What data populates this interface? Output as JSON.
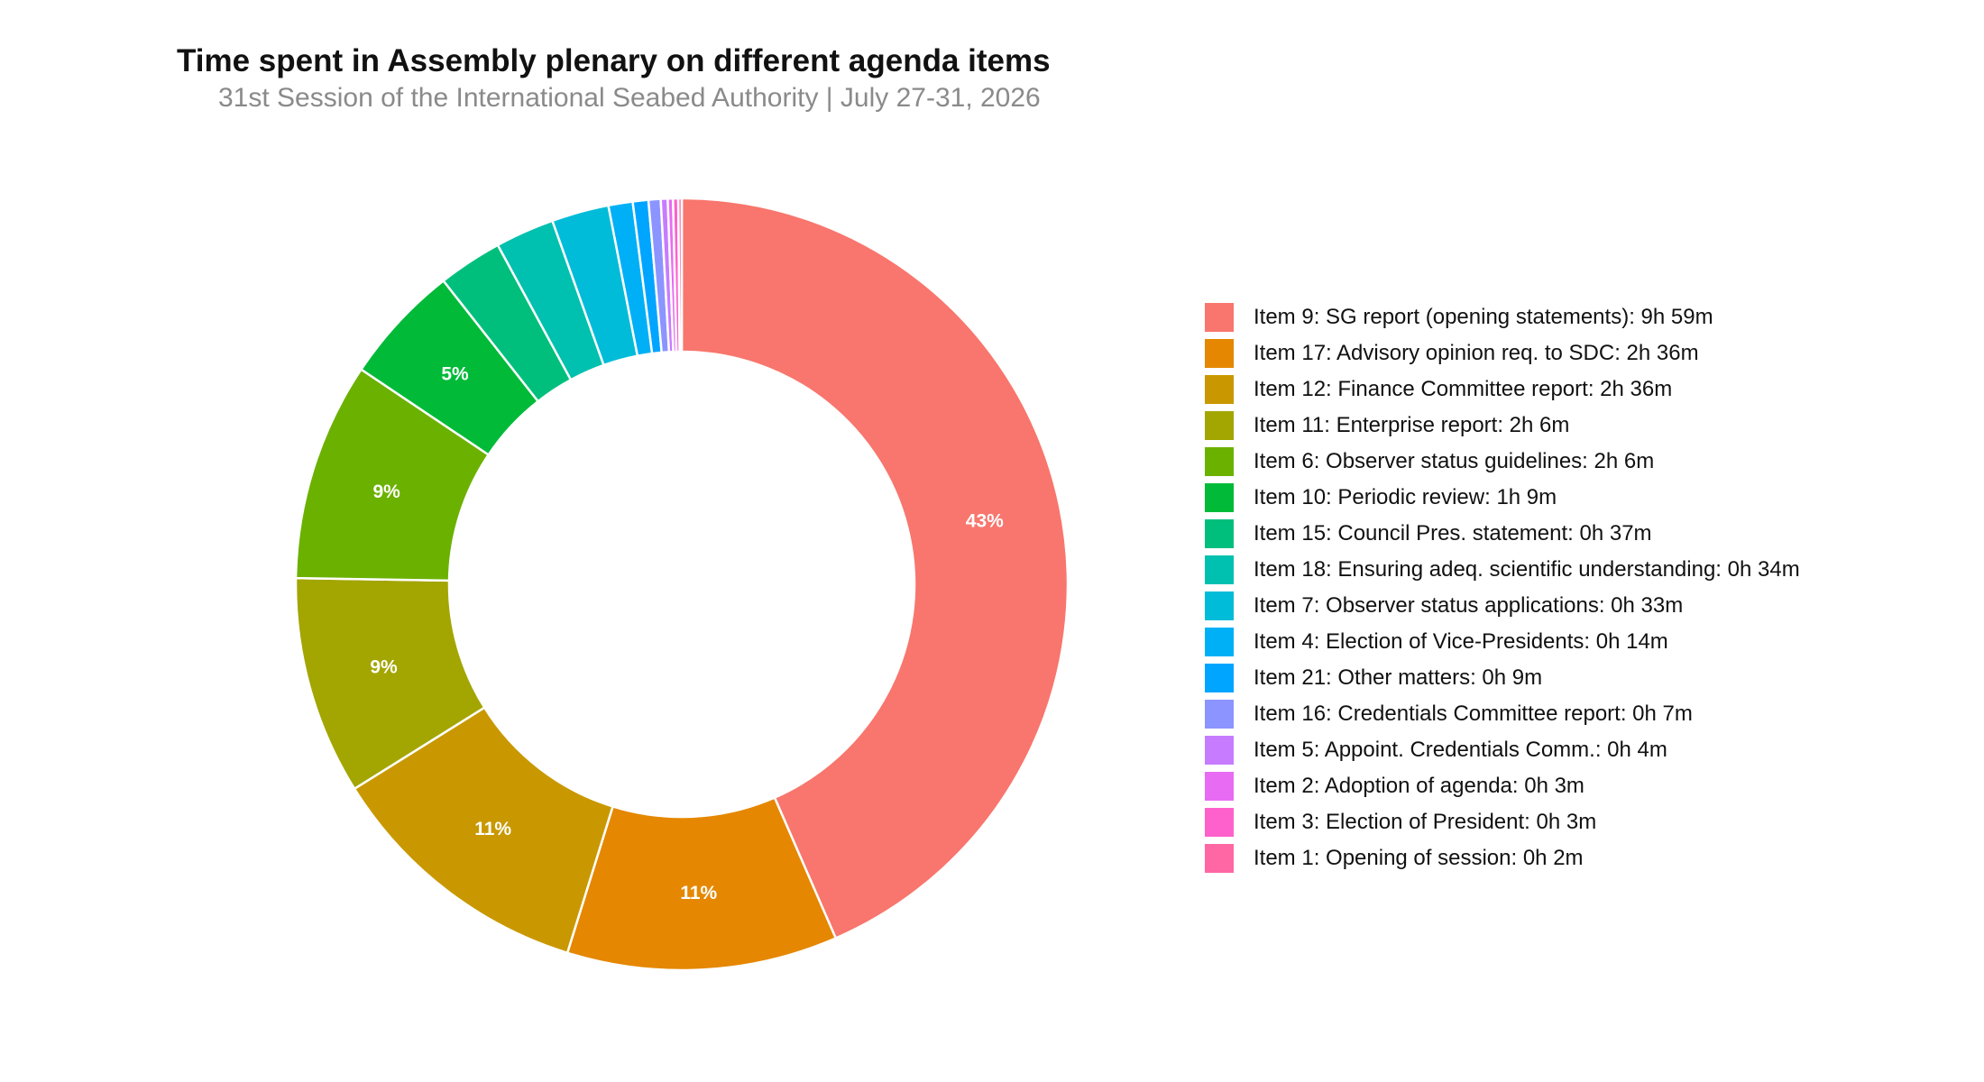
{
  "title": "Time spent in Assembly plenary on different agenda items",
  "subtitle": "31st Session of the International Seabed Authority | July 27-31, 2026",
  "chart_data": {
    "type": "pie",
    "variant": "donut",
    "unit": "minutes",
    "legend": "right",
    "slices": [
      {
        "label": "Item 9: SG report (opening statements):  9h 59m",
        "minutes": 599,
        "color": "#F8766D",
        "pct_label": "43%"
      },
      {
        "label": "Item 17: Advisory opinion req. to SDC:  2h 36m",
        "minutes": 156,
        "color": "#E58700",
        "pct_label": "11%"
      },
      {
        "label": "Item 12: Finance Committee report:  2h 36m",
        "minutes": 156,
        "color": "#C99800",
        "pct_label": "11%"
      },
      {
        "label": "Item 11: Enterprise report:  2h 6m",
        "minutes": 126,
        "color": "#A3A500",
        "pct_label": "9%"
      },
      {
        "label": "Item 6: Observer status guidelines:  2h 6m",
        "minutes": 126,
        "color": "#6BB100",
        "pct_label": "9%"
      },
      {
        "label": "Item 10: Periodic review:  1h 9m",
        "minutes": 69,
        "color": "#00BA38",
        "pct_label": "5%"
      },
      {
        "label": "Item 15: Council Pres. statement:  0h 37m",
        "minutes": 37,
        "color": "#00BF7D",
        "pct_label": ""
      },
      {
        "label": "Item 18: Ensuring adeq. scientific understanding:  0h 34m",
        "minutes": 34,
        "color": "#00C0AF",
        "pct_label": ""
      },
      {
        "label": "Item 7: Observer status applications:  0h 33m",
        "minutes": 33,
        "color": "#00BCD8",
        "pct_label": ""
      },
      {
        "label": "Item 4: Election of Vice-Presidents:  0h 14m",
        "minutes": 14,
        "color": "#00B0F6",
        "pct_label": ""
      },
      {
        "label": "Item 21: Other matters:  0h 9m",
        "minutes": 9,
        "color": "#00A5FF",
        "pct_label": ""
      },
      {
        "label": "Item 16: Credentials Committee report:  0h 7m",
        "minutes": 7,
        "color": "#8C94FF",
        "pct_label": ""
      },
      {
        "label": "Item 5: Appoint. Credentials Comm.:  0h 4m",
        "minutes": 4,
        "color": "#C77CFF",
        "pct_label": ""
      },
      {
        "label": "Item 2: Adoption of agenda:  0h 3m",
        "minutes": 3,
        "color": "#E76BF3",
        "pct_label": ""
      },
      {
        "label": "Item 3: Election of President:  0h 3m",
        "minutes": 3,
        "color": "#FF61CC",
        "pct_label": ""
      },
      {
        "label": "Item 1: Opening of session:  0h 2m",
        "minutes": 2,
        "color": "#FF67A4",
        "pct_label": ""
      }
    ]
  }
}
